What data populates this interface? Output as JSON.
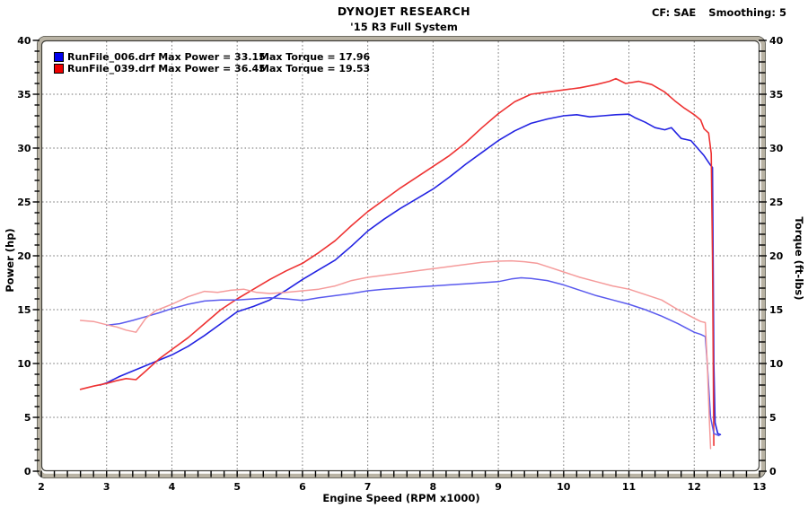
{
  "header": {
    "title": "DYNOJET RESEARCH",
    "subtitle": "'15 R3 Full System",
    "cf_label": "CF: SAE",
    "smoothing_label": "Smoothing: 5"
  },
  "legend": {
    "rows": [
      {
        "color": "#0000ee",
        "file_power": "RunFile_006.drf Max Power = 33.15",
        "torque": "Max Torque = 17.96"
      },
      {
        "color": "#ee0000",
        "file_power": "RunFile_039.drf Max Power = 36.45",
        "torque": "Max Torque = 19.53"
      }
    ]
  },
  "chart_data": {
    "type": "line",
    "title": "DYNOJET RESEARCH '15 R3 Full System",
    "xlabel": "Engine Speed (RPM x1000)",
    "ylabel_left": "Power (hp)",
    "ylabel_right": "Torque (ft-lbs)",
    "xlim": [
      2,
      13
    ],
    "ylim": [
      0,
      40
    ],
    "x_ticks": [
      2,
      3,
      4,
      5,
      6,
      7,
      8,
      9,
      10,
      11,
      12,
      13
    ],
    "y_ticks": [
      0,
      5,
      10,
      15,
      20,
      25,
      30,
      35,
      40
    ],
    "grid": "dashed",
    "legend_position": "top-left",
    "max_values": {
      "run006_max_power_hp": 33.15,
      "run006_max_torque_ftlbs": 17.96,
      "run039_max_power_hp": 36.45,
      "run039_max_torque_ftlbs": 19.53
    },
    "series": [
      {
        "name": "run006-power-hp",
        "color": "#2323e2",
        "width": 1.6,
        "points": [
          [
            2.9,
            8.0
          ],
          [
            3.0,
            8.2
          ],
          [
            3.2,
            8.8
          ],
          [
            3.4,
            9.3
          ],
          [
            3.6,
            9.8
          ],
          [
            3.8,
            10.3
          ],
          [
            4.0,
            10.8
          ],
          [
            4.25,
            11.6
          ],
          [
            4.5,
            12.6
          ],
          [
            4.75,
            13.7
          ],
          [
            5.0,
            14.8
          ],
          [
            5.25,
            15.3
          ],
          [
            5.5,
            15.9
          ],
          [
            5.75,
            16.8
          ],
          [
            6.0,
            17.8
          ],
          [
            6.25,
            18.7
          ],
          [
            6.5,
            19.6
          ],
          [
            6.75,
            20.9
          ],
          [
            7.0,
            22.3
          ],
          [
            7.25,
            23.4
          ],
          [
            7.5,
            24.4
          ],
          [
            7.75,
            25.3
          ],
          [
            8.0,
            26.2
          ],
          [
            8.25,
            27.3
          ],
          [
            8.5,
            28.5
          ],
          [
            8.75,
            29.6
          ],
          [
            9.0,
            30.7
          ],
          [
            9.25,
            31.6
          ],
          [
            9.5,
            32.3
          ],
          [
            9.75,
            32.7
          ],
          [
            10.0,
            33.0
          ],
          [
            10.2,
            33.1
          ],
          [
            10.4,
            32.9
          ],
          [
            10.6,
            33.0
          ],
          [
            10.8,
            33.1
          ],
          [
            11.0,
            33.15
          ],
          [
            11.1,
            32.8
          ],
          [
            11.25,
            32.4
          ],
          [
            11.4,
            31.9
          ],
          [
            11.55,
            31.7
          ],
          [
            11.65,
            31.9
          ],
          [
            11.8,
            30.9
          ],
          [
            11.95,
            30.7
          ],
          [
            12.05,
            30.0
          ],
          [
            12.15,
            29.3
          ],
          [
            12.25,
            28.4
          ],
          [
            12.28,
            28.2
          ],
          [
            12.3,
            10.0
          ],
          [
            12.32,
            4.5
          ],
          [
            12.36,
            3.5
          ],
          [
            12.4,
            3.4
          ]
        ]
      },
      {
        "name": "run039-power-hp",
        "color": "#ee3232",
        "width": 1.6,
        "points": [
          [
            2.6,
            7.6
          ],
          [
            2.8,
            7.9
          ],
          [
            3.0,
            8.15
          ],
          [
            3.15,
            8.4
          ],
          [
            3.3,
            8.6
          ],
          [
            3.45,
            8.5
          ],
          [
            3.6,
            9.3
          ],
          [
            3.8,
            10.4
          ],
          [
            4.0,
            11.3
          ],
          [
            4.25,
            12.4
          ],
          [
            4.5,
            13.7
          ],
          [
            4.75,
            15.0
          ],
          [
            5.0,
            16.0
          ],
          [
            5.25,
            16.9
          ],
          [
            5.5,
            17.8
          ],
          [
            5.75,
            18.6
          ],
          [
            6.0,
            19.3
          ],
          [
            6.25,
            20.3
          ],
          [
            6.5,
            21.4
          ],
          [
            6.75,
            22.8
          ],
          [
            7.0,
            24.1
          ],
          [
            7.25,
            25.2
          ],
          [
            7.5,
            26.3
          ],
          [
            7.75,
            27.3
          ],
          [
            8.0,
            28.3
          ],
          [
            8.25,
            29.3
          ],
          [
            8.5,
            30.5
          ],
          [
            8.75,
            31.9
          ],
          [
            9.0,
            33.2
          ],
          [
            9.25,
            34.3
          ],
          [
            9.5,
            35.0
          ],
          [
            9.75,
            35.2
          ],
          [
            10.0,
            35.4
          ],
          [
            10.25,
            35.6
          ],
          [
            10.5,
            35.9
          ],
          [
            10.7,
            36.2
          ],
          [
            10.8,
            36.45
          ],
          [
            10.95,
            36.0
          ],
          [
            11.15,
            36.2
          ],
          [
            11.35,
            35.9
          ],
          [
            11.55,
            35.2
          ],
          [
            11.7,
            34.4
          ],
          [
            11.85,
            33.7
          ],
          [
            12.0,
            33.1
          ],
          [
            12.1,
            32.6
          ],
          [
            12.15,
            31.8
          ],
          [
            12.22,
            31.4
          ],
          [
            12.26,
            29.5
          ],
          [
            12.28,
            20.0
          ],
          [
            12.3,
            2.4
          ]
        ]
      },
      {
        "name": "run006-torque-ftlbs",
        "color": "#5a5aee",
        "width": 1.5,
        "points": [
          [
            3.0,
            13.55
          ],
          [
            3.2,
            13.7
          ],
          [
            3.4,
            14.0
          ],
          [
            3.6,
            14.35
          ],
          [
            3.8,
            14.7
          ],
          [
            4.0,
            15.1
          ],
          [
            4.25,
            15.5
          ],
          [
            4.5,
            15.8
          ],
          [
            4.75,
            15.9
          ],
          [
            5.0,
            15.9
          ],
          [
            5.25,
            16.0
          ],
          [
            5.5,
            16.1
          ],
          [
            5.75,
            16.0
          ],
          [
            6.0,
            15.85
          ],
          [
            6.25,
            16.1
          ],
          [
            6.5,
            16.3
          ],
          [
            6.75,
            16.5
          ],
          [
            7.0,
            16.75
          ],
          [
            7.25,
            16.9
          ],
          [
            7.5,
            17.0
          ],
          [
            7.75,
            17.1
          ],
          [
            8.0,
            17.2
          ],
          [
            8.25,
            17.3
          ],
          [
            8.5,
            17.4
          ],
          [
            8.75,
            17.5
          ],
          [
            9.0,
            17.6
          ],
          [
            9.2,
            17.85
          ],
          [
            9.35,
            17.96
          ],
          [
            9.5,
            17.9
          ],
          [
            9.75,
            17.7
          ],
          [
            10.0,
            17.3
          ],
          [
            10.25,
            16.8
          ],
          [
            10.5,
            16.3
          ],
          [
            10.75,
            15.9
          ],
          [
            11.0,
            15.5
          ],
          [
            11.25,
            15.0
          ],
          [
            11.5,
            14.4
          ],
          [
            11.75,
            13.7
          ],
          [
            12.0,
            12.9
          ],
          [
            12.1,
            12.7
          ],
          [
            12.17,
            12.5
          ],
          [
            12.2,
            10.0
          ],
          [
            12.25,
            5.0
          ],
          [
            12.3,
            3.5
          ],
          [
            12.38,
            3.3
          ]
        ]
      },
      {
        "name": "run039-torque-ftlbs",
        "color": "#f59b9b",
        "width": 1.5,
        "points": [
          [
            2.6,
            14.0
          ],
          [
            2.8,
            13.9
          ],
          [
            3.0,
            13.6
          ],
          [
            3.15,
            13.4
          ],
          [
            3.3,
            13.1
          ],
          [
            3.45,
            12.9
          ],
          [
            3.6,
            14.2
          ],
          [
            3.75,
            14.9
          ],
          [
            4.0,
            15.5
          ],
          [
            4.25,
            16.2
          ],
          [
            4.5,
            16.7
          ],
          [
            4.7,
            16.6
          ],
          [
            4.9,
            16.8
          ],
          [
            5.1,
            16.9
          ],
          [
            5.3,
            16.6
          ],
          [
            5.5,
            16.5
          ],
          [
            5.75,
            16.6
          ],
          [
            6.0,
            16.75
          ],
          [
            6.25,
            16.9
          ],
          [
            6.5,
            17.2
          ],
          [
            6.75,
            17.7
          ],
          [
            7.0,
            18.0
          ],
          [
            7.25,
            18.2
          ],
          [
            7.5,
            18.4
          ],
          [
            7.75,
            18.6
          ],
          [
            8.0,
            18.8
          ],
          [
            8.25,
            19.0
          ],
          [
            8.5,
            19.2
          ],
          [
            8.75,
            19.4
          ],
          [
            9.0,
            19.5
          ],
          [
            9.2,
            19.53
          ],
          [
            9.4,
            19.45
          ],
          [
            9.6,
            19.3
          ],
          [
            9.8,
            18.9
          ],
          [
            10.0,
            18.5
          ],
          [
            10.25,
            18.0
          ],
          [
            10.5,
            17.6
          ],
          [
            10.75,
            17.2
          ],
          [
            11.0,
            16.9
          ],
          [
            11.25,
            16.4
          ],
          [
            11.5,
            15.9
          ],
          [
            11.75,
            15.0
          ],
          [
            12.0,
            14.2
          ],
          [
            12.1,
            13.9
          ],
          [
            12.17,
            13.8
          ],
          [
            12.2,
            10.0
          ],
          [
            12.23,
            5.0
          ],
          [
            12.25,
            2.1
          ]
        ]
      }
    ]
  }
}
